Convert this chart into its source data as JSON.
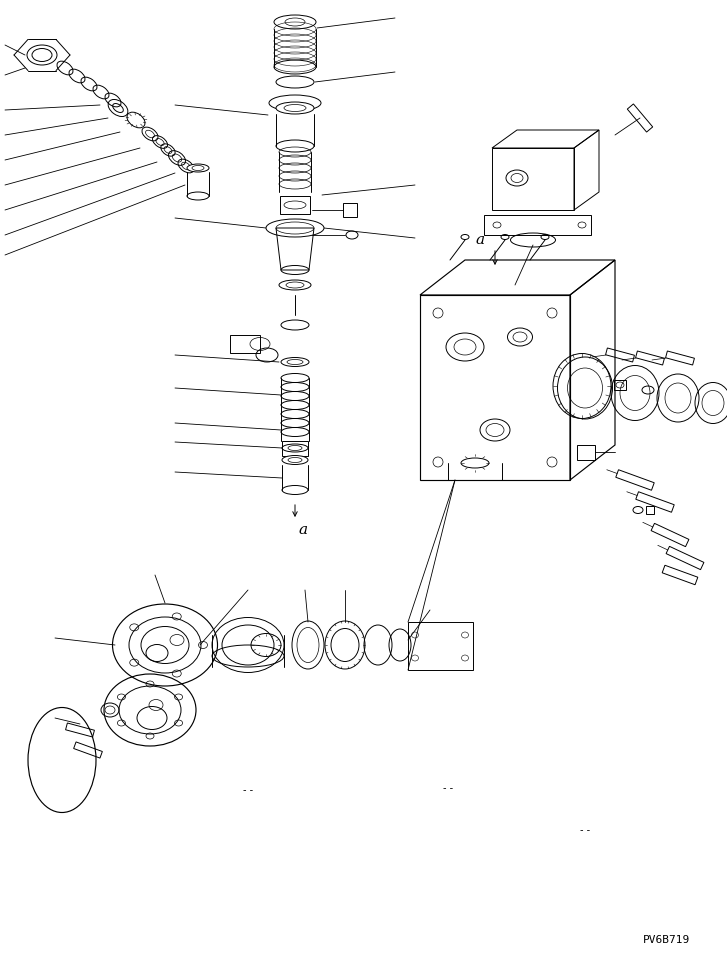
{
  "figure_width": 7.27,
  "figure_height": 9.58,
  "dpi": 100,
  "bg": "#ffffff",
  "lc": "#000000",
  "lw": 0.7,
  "part_code": "PV6B719"
}
